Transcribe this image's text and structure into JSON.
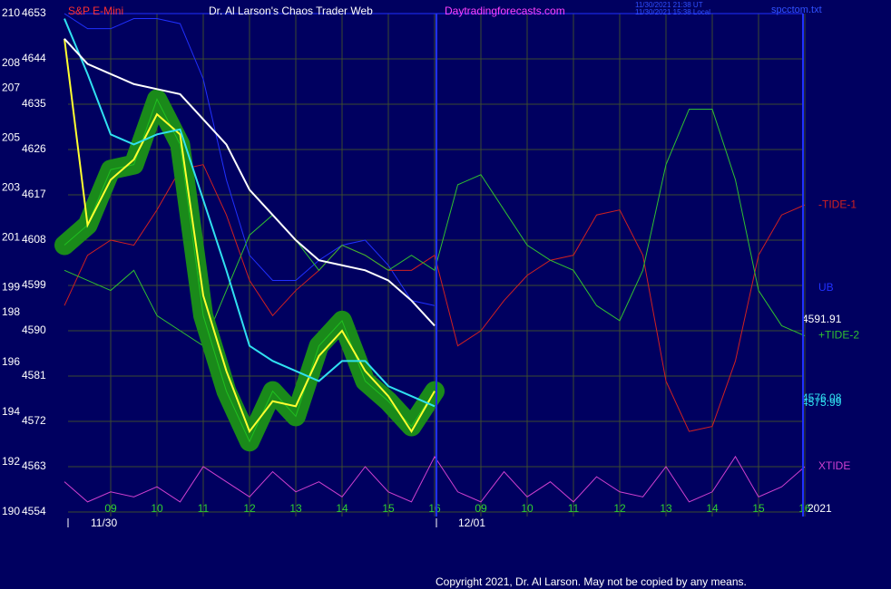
{
  "header": {
    "instrument": "S&P E-Mini",
    "site_title": "Dr. Al Larson's Chaos Trader Web",
    "url": "Daytradingforecasts.com",
    "time_ut": "11/30/2021 21:38 UT",
    "time_local": "11/30/2021 15:38 Local",
    "file": "spcctom.txt"
  },
  "footer": {
    "copyright": "Copyright 2021, Dr. Al Larson. May not be copied by any means.",
    "year": "2021"
  },
  "chart_data": {
    "type": "line",
    "categories": [
      null,
      null,
      "09",
      null,
      "10",
      null,
      "11",
      null,
      "12",
      null,
      "13",
      null,
      "14",
      null,
      "15",
      null,
      "16",
      null,
      "09",
      null,
      "10",
      null,
      "11",
      null,
      "12",
      null,
      "13",
      null,
      "14",
      null,
      "15",
      null,
      "16"
    ],
    "dates": [
      "11/30",
      "12/01"
    ],
    "ylim": [
      4554,
      4653
    ],
    "yticks": [
      4554,
      4563,
      4572,
      4581,
      4590,
      4599,
      4608,
      4617,
      4626,
      4635,
      4644,
      4653
    ],
    "y2lim": [
      190,
      210
    ],
    "y2ticks": [
      190,
      192,
      194,
      196,
      198,
      199,
      201,
      203,
      205,
      207,
      208,
      210
    ],
    "grid": true,
    "series": [
      {
        "name": "UB",
        "color": "#2030ff",
        "values": [
          4653,
          4650,
          4650,
          4652,
          4652,
          4651,
          4640,
          4620,
          4605,
          4600,
          4600,
          4604,
          4607,
          4608,
          4603,
          4596,
          4595,
          null,
          null,
          null,
          null,
          null,
          null,
          null,
          null,
          null,
          null,
          null,
          null,
          null,
          null,
          null,
          null
        ]
      },
      {
        "name": "-TIDE-1",
        "color": "#d02020",
        "values": [
          4595,
          4605,
          4608,
          4607,
          4614,
          4622,
          4623,
          4613,
          4600,
          4593,
          4598,
          4602,
          4607,
          4605,
          4602,
          4602,
          4605,
          4587,
          4590,
          4596,
          4601,
          4604,
          4605,
          4613,
          4614,
          4605,
          4580,
          4570,
          4571,
          4584,
          4605,
          4613,
          4615
        ]
      },
      {
        "name": "+TIDE-2",
        "color": "#30c030",
        "values": [
          4602,
          4600,
          4598,
          4602,
          4593,
          4590,
          4587,
          4598,
          4609,
          4613,
          4608,
          4602,
          4607,
          4605,
          4602,
          4605,
          4602,
          4619,
          4621,
          4614,
          4607,
          4604,
          4602,
          4595,
          4592,
          4602,
          4623,
          4634,
          4634,
          4620,
          4598,
          4591,
          4589
        ]
      },
      {
        "name": "XTIDE",
        "color": "#d040d0",
        "values": [
          4560,
          4556,
          4558,
          4557,
          4559,
          4556,
          4563,
          4560,
          4557,
          4562,
          4558,
          4560,
          4557,
          4563,
          4558,
          4556,
          4565,
          4558,
          4556,
          4562,
          4557,
          4560,
          4556,
          4561,
          4558,
          4557,
          4563,
          4556,
          4558,
          4565,
          4557,
          4559,
          4563
        ]
      },
      {
        "color": "#20c020",
        "values": [
          4607,
          4611,
          4622,
          4623,
          4636,
          4627,
          4593,
          4578,
          4568,
          4578,
          4573,
          4587,
          4592,
          4580,
          4576,
          4571,
          4578,
          null,
          null,
          null,
          null,
          null,
          null,
          null,
          null,
          null,
          null,
          null,
          null,
          null,
          null,
          null,
          null
        ]
      },
      {
        "color": "#ffff30",
        "values": [
          4648,
          4611,
          4620,
          4624,
          4633,
          4629,
          4597,
          4582,
          4570,
          4576,
          4575,
          4585,
          4590,
          4582,
          4577,
          4570,
          4578,
          null,
          null,
          null,
          null,
          null,
          null,
          null,
          null,
          null,
          null,
          null,
          null,
          null,
          null,
          null,
          null
        ]
      },
      {
        "color": "#30e0f0",
        "values": [
          4652,
          4641,
          4629,
          4627,
          4629,
          4630,
          4616,
          4602,
          4587,
          4584,
          4582,
          4580,
          4584,
          4584,
          4579,
          4577,
          4575,
          null,
          null,
          null,
          null,
          null,
          null,
          null,
          null,
          null,
          null,
          null,
          null,
          null,
          null,
          null,
          null
        ]
      },
      {
        "color": "#ffffff",
        "values": [
          4648,
          4643,
          4641,
          4639,
          4638,
          4637,
          4632,
          4627,
          4618,
          4613,
          4608,
          4604,
          4603,
          4602,
          4600,
          4596,
          4591,
          null,
          null,
          null,
          null,
          null,
          null,
          null,
          null,
          null,
          null,
          null,
          null,
          null,
          null,
          null,
          null
        ]
      }
    ],
    "annotations": [
      "4591.91",
      "4576.08",
      "4575.99"
    ]
  }
}
